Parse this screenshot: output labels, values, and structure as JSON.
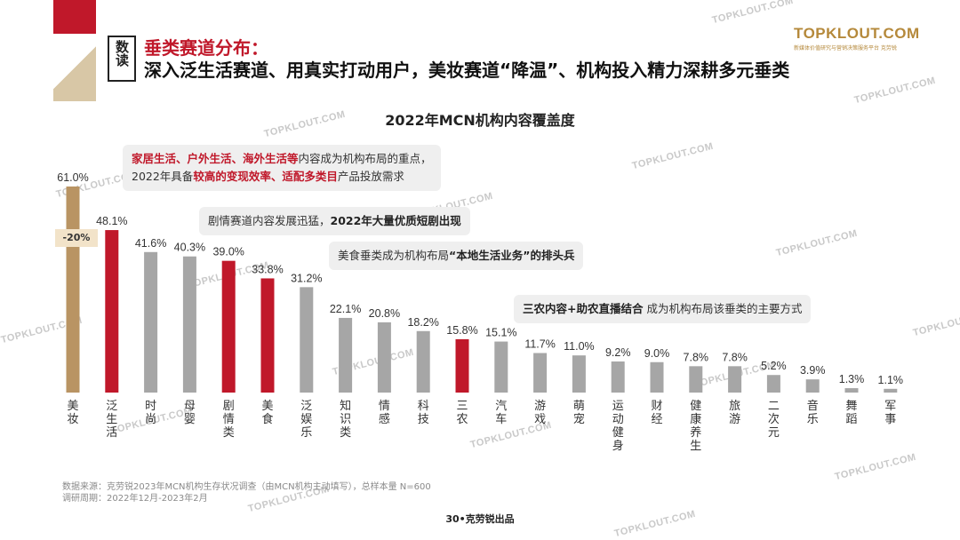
{
  "header": {
    "tag": "数读",
    "title": "垂类赛道分布：",
    "subtitle": "深入泛生活赛道、用真实打动用户，美妆赛道“降温”、机构投入精力深耕多元垂类"
  },
  "logo": {
    "main": "TOPKLOUT.COM",
    "sub": "新媒体价值研究与营销决策服务平台 克劳锐"
  },
  "watermark_text": "TOPKLOUT.COM",
  "chart_data": {
    "type": "bar",
    "title": "2022年MCN机构内容覆盖度",
    "categories": [
      "美妆",
      "泛生活",
      "时尚",
      "母婴",
      "剧情类",
      "美食",
      "泛娱乐",
      "知识类",
      "情感",
      "科技",
      "三农",
      "汽车",
      "游戏",
      "萌宠",
      "运动健身",
      "财经",
      "健康养生",
      "旅游",
      "二次元",
      "音乐",
      "舞蹈",
      "军事"
    ],
    "values": [
      61.0,
      48.1,
      41.6,
      40.3,
      39.0,
      33.8,
      31.2,
      22.1,
      20.8,
      18.2,
      15.8,
      15.1,
      11.7,
      11.0,
      9.2,
      9.0,
      7.8,
      7.8,
      5.2,
      3.9,
      1.3,
      1.1
    ],
    "value_labels": [
      "61.0%",
      "48.1%",
      "41.6%",
      "40.3%",
      "39.0%",
      "33.8%",
      "31.2%",
      "22.1%",
      "20.8%",
      "18.2%",
      "15.8%",
      "15.1%",
      "11.7%",
      "11.0%",
      "9.2%",
      "9.0%",
      "7.8%",
      "7.8%",
      "5.2%",
      "3.9%",
      "1.3%",
      "1.1%"
    ],
    "bar_colors": [
      "#b99463",
      "#c0182a",
      "#a6a6a6",
      "#a6a6a6",
      "#c0182a",
      "#c0182a",
      "#a6a6a6",
      "#a6a6a6",
      "#a6a6a6",
      "#a6a6a6",
      "#c0182a",
      "#a6a6a6",
      "#a6a6a6",
      "#a6a6a6",
      "#a6a6a6",
      "#a6a6a6",
      "#a6a6a6",
      "#a6a6a6",
      "#a6a6a6",
      "#a6a6a6",
      "#a6a6a6",
      "#a6a6a6"
    ],
    "ylim": [
      0,
      61
    ],
    "grid": false,
    "annotation": "-20%"
  },
  "callouts": {
    "c1_line1_red": "家居生活、户外生活、海外生活等",
    "c1_line1_rest": "内容成为机构布局的重点，",
    "c1_line2_a": "2022年具备",
    "c1_line2_red": "较高的变现效率、适配多类目",
    "c1_line2_b": "产品投放需求",
    "c2_a": "剧情赛道内容发展迅猛，",
    "c2_bold": "2022年大量优质短剧出现",
    "c3_a": "美食垂类成为机构布局",
    "c3_bold": "“本地生活业务”的排头兵",
    "c4_bold": "三农内容+助农直播结合",
    "c4_rest": "成为机构布局该垂类的主要方式"
  },
  "source": {
    "line1": "数据来源：克劳锐2023年MCN机构生存状况调查（由MCN机构主动填写），总样本量 N=600",
    "line2": "调研周期：2022年12月-2023年2月"
  },
  "footer": "30•克劳锐出品"
}
